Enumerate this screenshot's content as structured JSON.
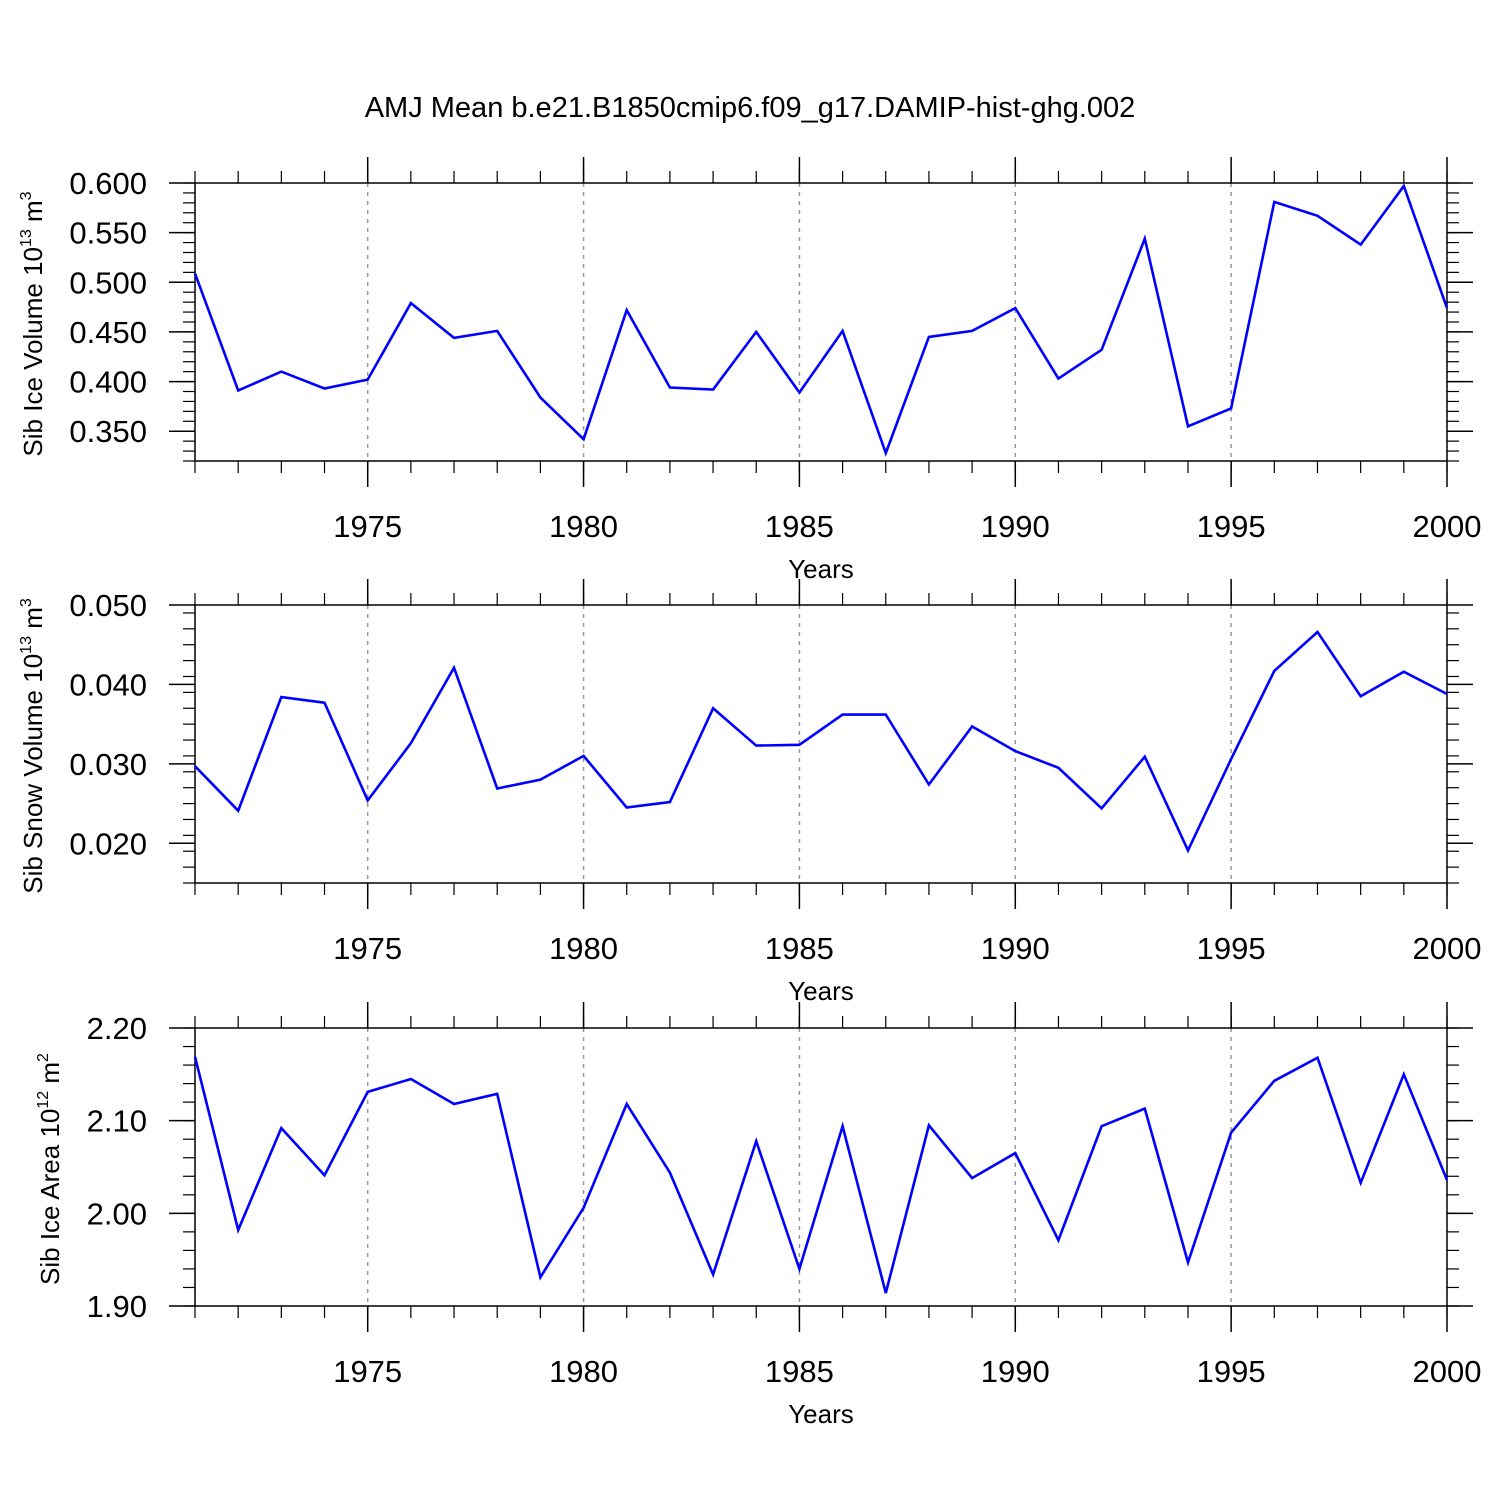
{
  "title": "AMJ Mean b.e21.B1850cmip6.f09_g17.DAMIP-hist-ghg.002",
  "colors": {
    "line": "#0000ff",
    "axes": "#000000",
    "grid": "#999999"
  },
  "chart_data": [
    {
      "type": "line",
      "ylabel_main": "Sib Ice Volume 10",
      "ylabel_exp": "13",
      "ylabel_unit": " m",
      "ylabel_unit_exp": "3",
      "xlabel": "Years",
      "xlim": [
        1971,
        2000
      ],
      "ylim": [
        0.32,
        0.6
      ],
      "ytick_values": [
        0.35,
        0.4,
        0.45,
        0.5,
        0.55,
        0.6
      ],
      "ytick_labels": [
        "0.350",
        "0.400",
        "0.450",
        "0.500",
        "0.550",
        "0.600"
      ],
      "xtick_values": [
        1975,
        1980,
        1985,
        1990,
        1995,
        2000
      ],
      "xtick_labels": [
        "1975",
        "1980",
        "1985",
        "1990",
        "1995",
        "2000"
      ],
      "x": [
        1971,
        1972,
        1973,
        1974,
        1975,
        1976,
        1977,
        1978,
        1979,
        1980,
        1981,
        1982,
        1983,
        1984,
        1985,
        1986,
        1987,
        1988,
        1989,
        1990,
        1991,
        1992,
        1993,
        1994,
        1995,
        1996,
        1997,
        1998,
        1999,
        2000
      ],
      "y": [
        0.509,
        0.391,
        0.41,
        0.393,
        0.402,
        0.479,
        0.444,
        0.451,
        0.384,
        0.342,
        0.472,
        0.394,
        0.392,
        0.45,
        0.389,
        0.451,
        0.328,
        0.445,
        0.451,
        0.474,
        0.403,
        0.432,
        0.544,
        0.355,
        0.373,
        0.581,
        0.567,
        0.538,
        0.597,
        0.474
      ]
    },
    {
      "type": "line",
      "ylabel_main": "Sib Snow Volume 10",
      "ylabel_exp": "13",
      "ylabel_unit": " m",
      "ylabel_unit_exp": "3",
      "xlabel": "Years",
      "xlim": [
        1971,
        2000
      ],
      "ylim": [
        0.015,
        0.05
      ],
      "ytick_values": [
        0.02,
        0.03,
        0.04,
        0.05
      ],
      "ytick_labels": [
        "0.020",
        "0.030",
        "0.040",
        "0.050"
      ],
      "xtick_values": [
        1975,
        1980,
        1985,
        1990,
        1995,
        2000
      ],
      "xtick_labels": [
        "1975",
        "1980",
        "1985",
        "1990",
        "1995",
        "2000"
      ],
      "x": [
        1971,
        1972,
        1973,
        1974,
        1975,
        1976,
        1977,
        1978,
        1979,
        1980,
        1981,
        1982,
        1983,
        1984,
        1985,
        1986,
        1987,
        1988,
        1989,
        1990,
        1991,
        1992,
        1993,
        1994,
        1995,
        1996,
        1997,
        1998,
        1999,
        2000
      ],
      "y": [
        0.0297,
        0.0241,
        0.0384,
        0.0377,
        0.0254,
        0.0326,
        0.0421,
        0.0269,
        0.028,
        0.031,
        0.0245,
        0.0252,
        0.037,
        0.0323,
        0.0324,
        0.0362,
        0.0362,
        0.0274,
        0.0347,
        0.0316,
        0.0295,
        0.0244,
        0.0309,
        0.0191,
        0.0306,
        0.0417,
        0.0466,
        0.0385,
        0.0416,
        0.0388
      ]
    },
    {
      "type": "line",
      "ylabel_main": "Sib Ice Area 10",
      "ylabel_exp": "12",
      "ylabel_unit": " m",
      "ylabel_unit_exp": "2",
      "xlabel": "Years",
      "xlim": [
        1971,
        2000
      ],
      "ylim": [
        1.9,
        2.2
      ],
      "ytick_values": [
        1.9,
        2.0,
        2.1,
        2.2
      ],
      "ytick_labels": [
        "1.90",
        "2.00",
        "2.10",
        "2.20"
      ],
      "xtick_values": [
        1975,
        1980,
        1985,
        1990,
        1995,
        2000
      ],
      "xtick_labels": [
        "1975",
        "1980",
        "1985",
        "1990",
        "1995",
        "2000"
      ],
      "x": [
        1971,
        1972,
        1973,
        1974,
        1975,
        1976,
        1977,
        1978,
        1979,
        1980,
        1981,
        1982,
        1983,
        1984,
        1985,
        1986,
        1987,
        1988,
        1989,
        1990,
        1991,
        1992,
        1993,
        1994,
        1995,
        1996,
        1997,
        1998,
        1999,
        2000
      ],
      "y": [
        2.169,
        1.982,
        2.092,
        2.041,
        2.131,
        2.145,
        2.118,
        2.129,
        1.931,
        2.006,
        2.118,
        2.044,
        1.934,
        2.078,
        1.94,
        2.094,
        1.914,
        2.095,
        2.038,
        2.065,
        1.971,
        2.094,
        2.113,
        1.947,
        2.087,
        2.143,
        2.168,
        2.033,
        2.15,
        2.036
      ]
    }
  ]
}
